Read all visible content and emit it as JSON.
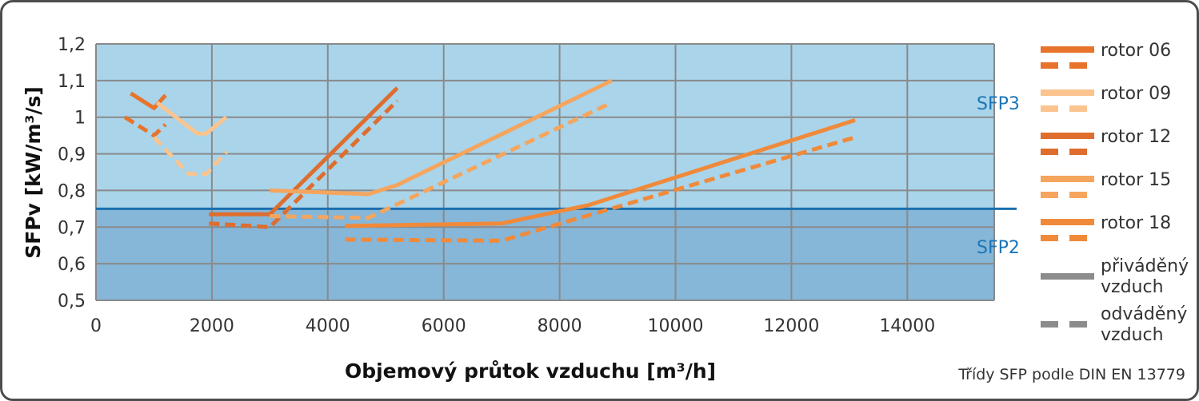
{
  "chart_data": {
    "type": "line",
    "xlabel": "Objemový průtok vzduchu [m³/h]",
    "ylabel": "SFPv [kW/m³/s]",
    "xlim": [
      0,
      15500
    ],
    "ylim": [
      0.5,
      1.2
    ],
    "x_ticks": [
      "0",
      "2000",
      "4000",
      "6000",
      "8000",
      "10000",
      "12000",
      "14000"
    ],
    "x_tick_values": [
      0,
      2000,
      4000,
      6000,
      8000,
      10000,
      12000,
      14000
    ],
    "y_ticks": [
      "0,5",
      "0,6",
      "0,7",
      "0,8",
      "0,9",
      "1",
      "1,1",
      "1,2"
    ],
    "y_tick_values": [
      0.5,
      0.6,
      0.7,
      0.8,
      0.9,
      1.0,
      1.1,
      1.2
    ],
    "grid": true,
    "zones": [
      {
        "label": "SFP3",
        "from": 0.75,
        "to": 1.2,
        "color": "#a9d4ea"
      },
      {
        "label": "SFP2",
        "from": 0.5,
        "to": 0.75,
        "color": "#86b6d8"
      }
    ],
    "boundary": {
      "y": 0.75,
      "color": "#1b6fae"
    },
    "series": [
      {
        "name": "rotor 06",
        "air": "supply",
        "color": "#e8742c",
        "points": [
          [
            600,
            1.065
          ],
          [
            1000,
            1.025
          ],
          [
            1200,
            1.06
          ]
        ]
      },
      {
        "name": "rotor 06",
        "air": "exhaust",
        "color": "#e8742c",
        "points": [
          [
            500,
            1.0
          ],
          [
            1000,
            0.95
          ],
          [
            1200,
            0.98
          ]
        ]
      },
      {
        "name": "rotor 09",
        "air": "supply",
        "color": "#fbc48e",
        "points": [
          [
            1050,
            1.04
          ],
          [
            1750,
            0.955
          ],
          [
            1900,
            0.955
          ],
          [
            2250,
            1.0
          ]
        ]
      },
      {
        "name": "rotor 09",
        "air": "exhaust",
        "color": "#fbc48e",
        "points": [
          [
            1000,
            0.945
          ],
          [
            1600,
            0.845
          ],
          [
            1900,
            0.845
          ],
          [
            2250,
            0.905
          ]
        ]
      },
      {
        "name": "rotor 12",
        "air": "supply",
        "color": "#de6d2e",
        "points": [
          [
            1950,
            0.735
          ],
          [
            3000,
            0.735
          ],
          [
            5200,
            1.08
          ]
        ]
      },
      {
        "name": "rotor 12",
        "air": "exhaust",
        "color": "#de6d2e",
        "points": [
          [
            1950,
            0.71
          ],
          [
            3000,
            0.7
          ],
          [
            5200,
            1.045
          ]
        ]
      },
      {
        "name": "rotor 15",
        "air": "supply",
        "color": "#f5a55e",
        "points": [
          [
            3000,
            0.8
          ],
          [
            4700,
            0.79
          ],
          [
            5200,
            0.815
          ],
          [
            8900,
            1.1
          ]
        ]
      },
      {
        "name": "rotor 15",
        "air": "exhaust",
        "color": "#f5a55e",
        "points": [
          [
            3000,
            0.73
          ],
          [
            4700,
            0.725
          ],
          [
            8900,
            1.04
          ]
        ]
      },
      {
        "name": "rotor 18",
        "air": "supply",
        "color": "#f08a3a",
        "points": [
          [
            4300,
            0.703
          ],
          [
            7000,
            0.71
          ],
          [
            8500,
            0.76
          ],
          [
            13100,
            0.992
          ]
        ]
      },
      {
        "name": "rotor 18",
        "air": "exhaust",
        "color": "#f08a3a",
        "points": [
          [
            4300,
            0.666
          ],
          [
            7000,
            0.663
          ],
          [
            13100,
            0.945
          ]
        ]
      }
    ],
    "legend": {
      "placement": "right",
      "rotors": [
        {
          "label": "rotor 06",
          "color": "#e8742c"
        },
        {
          "label": "rotor 09",
          "color": "#fbc48e"
        },
        {
          "label": "rotor 12",
          "color": "#de6d2e"
        },
        {
          "label": "rotor 15",
          "color": "#f5a55e"
        },
        {
          "label": "rotor 18",
          "color": "#f08a3a"
        }
      ],
      "supply": {
        "line1": "přiváděný",
        "line2": "vzduch",
        "color": "#8c8c8c"
      },
      "exhaust": {
        "line1": "odváděný",
        "line2": "vzduch",
        "color": "#8c8c8c"
      }
    },
    "note": "Třídy SFP podle DIN EN 13779"
  }
}
